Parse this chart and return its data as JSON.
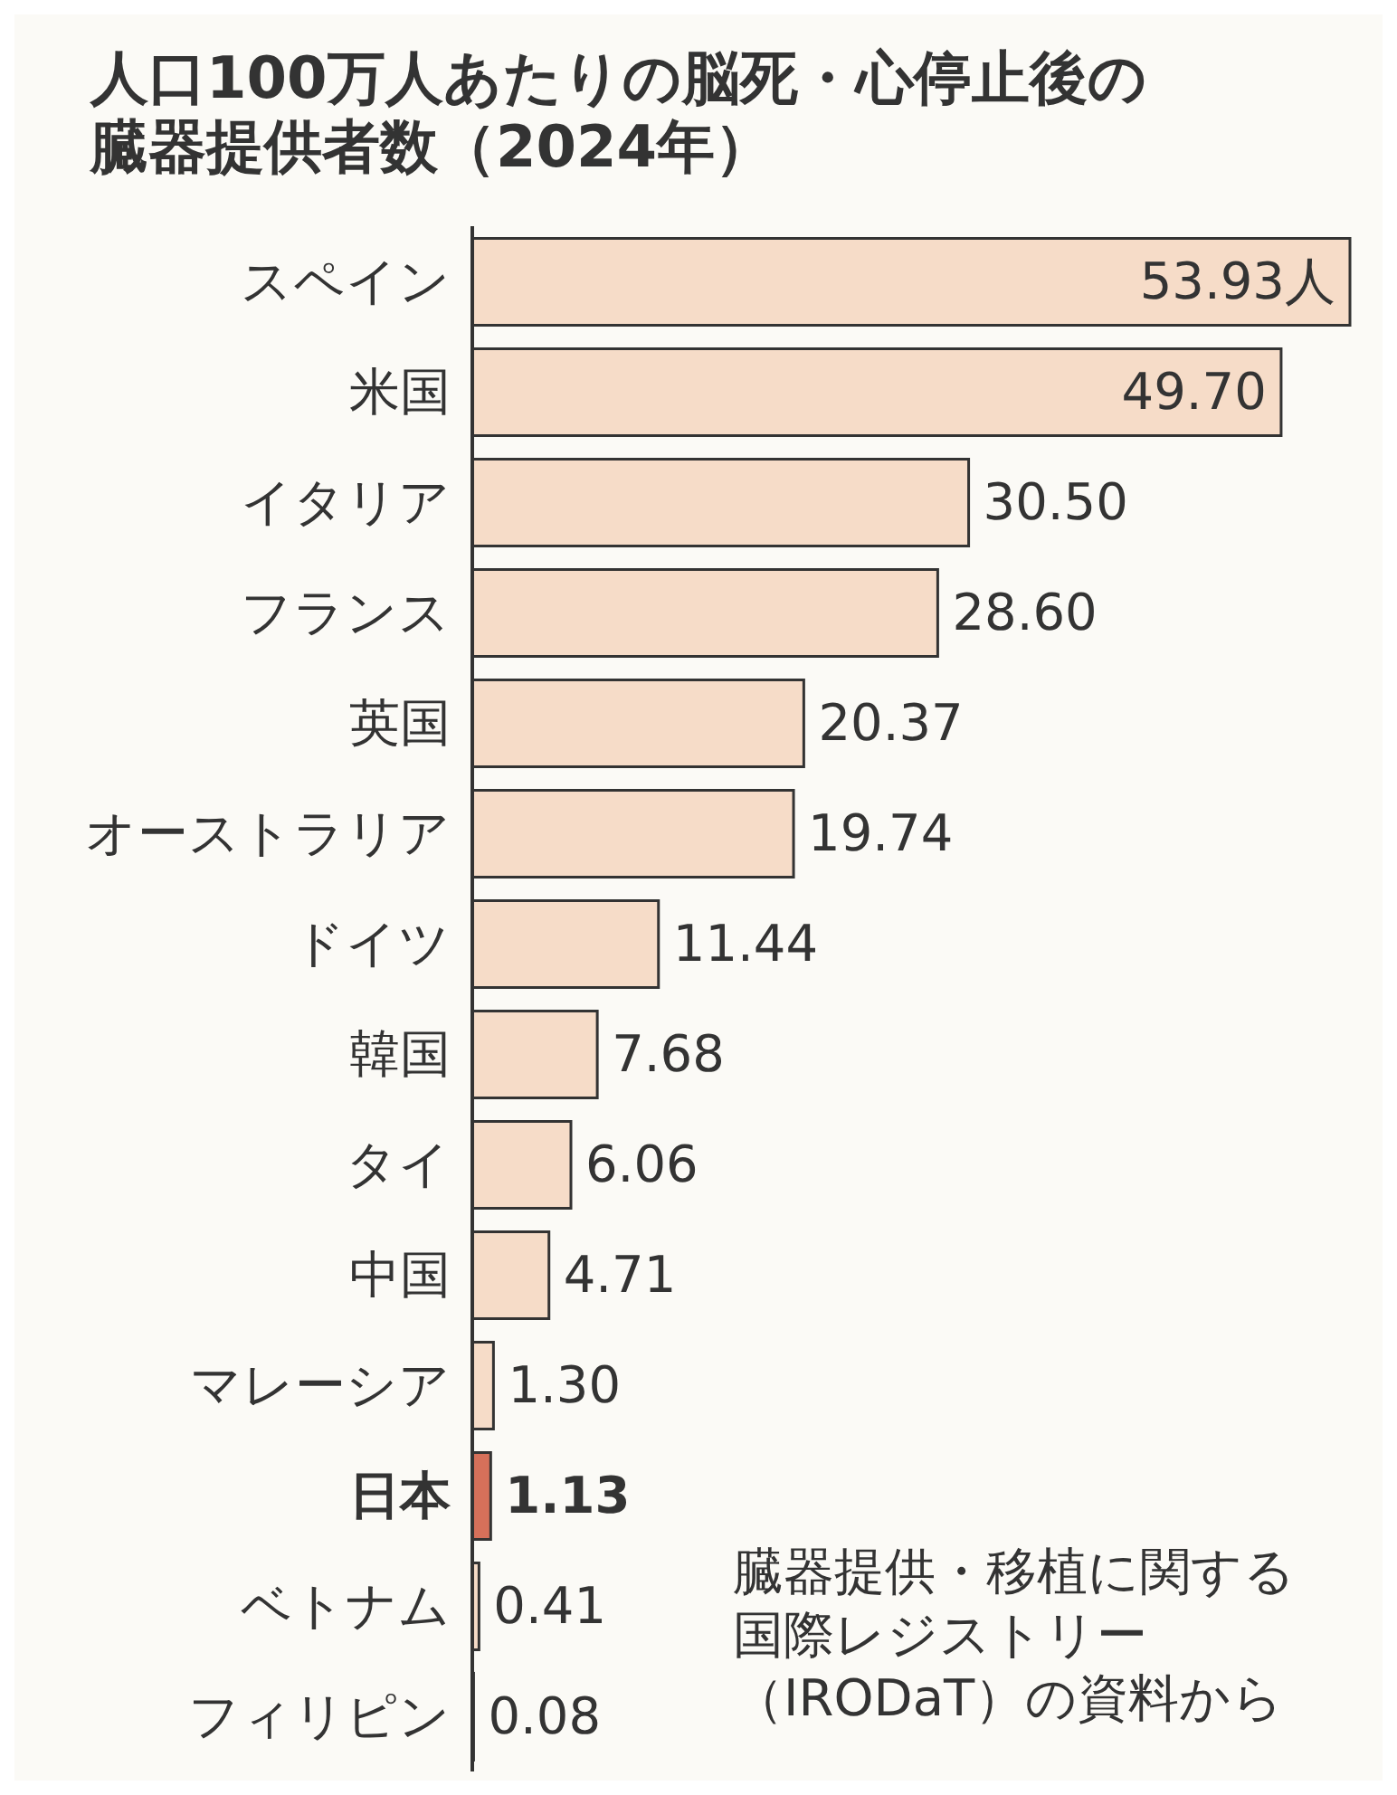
{
  "chart_data": {
    "type": "bar",
    "orientation": "horizontal",
    "title": "人口100万人あたりの脳死・心停止後の臓器提供者数（2024年）",
    "categories": [
      "スペイン",
      "米国",
      "イタリア",
      "フランス",
      "英国",
      "オーストラリア",
      "ドイツ",
      "韓国",
      "タイ",
      "中国",
      "マレーシア",
      "日本",
      "ベトナム",
      "フィリピン"
    ],
    "values": [
      53.93,
      49.7,
      30.5,
      28.6,
      20.37,
      19.74,
      11.44,
      7.68,
      6.06,
      4.71,
      1.3,
      1.13,
      0.41,
      0.08
    ],
    "colors": [
      "#f6dcc8",
      "#f6dcc8",
      "#f6dcc8",
      "#f6dcc8",
      "#f6dcc8",
      "#f6dcc8",
      "#f6dcc8",
      "#f6dcc8",
      "#f6dcc8",
      "#f6dcc8",
      "#f6dcc8",
      "#d6705a",
      "#f6dcc8",
      "#f6dcc8"
    ],
    "value_labels": [
      "53.93人",
      "49.70",
      "30.50",
      "28.60",
      "20.37",
      "19.74",
      "11.44",
      "7.68",
      "6.06",
      "4.71",
      "1.30",
      "1.13",
      "0.41",
      "0.08"
    ],
    "annotations": [
      "臓器提供・移植に関する国際レジストリー（IRODaT）の資料から"
    ]
  }
}
